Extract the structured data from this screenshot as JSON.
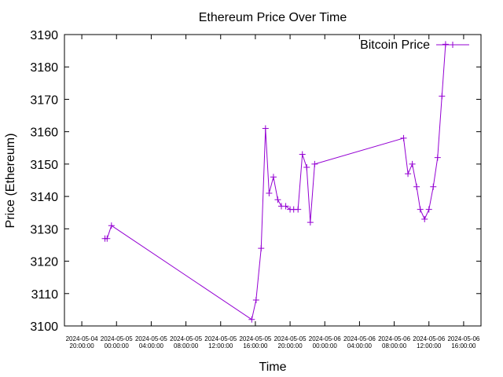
{
  "chart_data": {
    "type": "line",
    "title": "Ethereum Price Over Time",
    "xlabel": "Time",
    "ylabel": "Price (Ethereum)",
    "ylim": [
      3100,
      3190
    ],
    "yticks": [
      3100,
      3110,
      3120,
      3130,
      3140,
      3150,
      3160,
      3170,
      3180,
      3190
    ],
    "xlim": [
      "2024-05-04 18:00",
      "2024-05-06 18:00"
    ],
    "xticks": [
      {
        "value": "2024-05-04 20:00",
        "date": "2024-05-04",
        "time": "20:00:00"
      },
      {
        "value": "2024-05-05 00:00",
        "date": "2024-05-05",
        "time": "00:00:00"
      },
      {
        "value": "2024-05-05 04:00",
        "date": "2024-05-05",
        "time": "04:00:00"
      },
      {
        "value": "2024-05-05 08:00",
        "date": "2024-05-05",
        "time": "08:00:00"
      },
      {
        "value": "2024-05-05 12:00",
        "date": "2024-05-05",
        "time": "12:00:00"
      },
      {
        "value": "2024-05-05 16:00",
        "date": "2024-05-05",
        "time": "16:00:00"
      },
      {
        "value": "2024-05-05 20:00",
        "date": "2024-05-05",
        "time": "20:00:00"
      },
      {
        "value": "2024-05-06 00:00",
        "date": "2024-05-06",
        "time": "00:00:00"
      },
      {
        "value": "2024-05-06 04:00",
        "date": "2024-05-06",
        "time": "04:00:00"
      },
      {
        "value": "2024-05-06 08:00",
        "date": "2024-05-06",
        "time": "08:00:00"
      },
      {
        "value": "2024-05-06 12:00",
        "date": "2024-05-06",
        "time": "12:00:00"
      },
      {
        "value": "2024-05-06 16:00",
        "date": "2024-05-06",
        "time": "16:00:00"
      }
    ],
    "legend_position": "top-right",
    "series": [
      {
        "name": "Bitcoin Price",
        "color": "#9400d3",
        "marker": "plus",
        "points": [
          {
            "x": "2024-05-04 22:40",
            "y": 3127
          },
          {
            "x": "2024-05-04 22:55",
            "y": 3127
          },
          {
            "x": "2024-05-04 23:25",
            "y": 3131
          },
          {
            "x": "2024-05-05 15:35",
            "y": 3102
          },
          {
            "x": "2024-05-05 16:05",
            "y": 3108
          },
          {
            "x": "2024-05-05 16:40",
            "y": 3124
          },
          {
            "x": "2024-05-05 17:10",
            "y": 3161
          },
          {
            "x": "2024-05-05 17:35",
            "y": 3141
          },
          {
            "x": "2024-05-05 18:05",
            "y": 3146
          },
          {
            "x": "2024-05-05 18:35",
            "y": 3139
          },
          {
            "x": "2024-05-05 19:00",
            "y": 3137
          },
          {
            "x": "2024-05-05 19:30",
            "y": 3137
          },
          {
            "x": "2024-05-05 20:00",
            "y": 3136
          },
          {
            "x": "2024-05-05 20:25",
            "y": 3136
          },
          {
            "x": "2024-05-05 20:55",
            "y": 3136
          },
          {
            "x": "2024-05-05 21:25",
            "y": 3153
          },
          {
            "x": "2024-05-05 21:55",
            "y": 3149
          },
          {
            "x": "2024-05-05 22:20",
            "y": 3132
          },
          {
            "x": "2024-05-05 22:50",
            "y": 3150
          },
          {
            "x": "2024-05-06 09:05",
            "y": 3158
          },
          {
            "x": "2024-05-06 09:35",
            "y": 3147
          },
          {
            "x": "2024-05-06 10:05",
            "y": 3150
          },
          {
            "x": "2024-05-06 10:35",
            "y": 3143
          },
          {
            "x": "2024-05-06 11:00",
            "y": 3136
          },
          {
            "x": "2024-05-06 11:30",
            "y": 3133
          },
          {
            "x": "2024-05-06 12:00",
            "y": 3136
          },
          {
            "x": "2024-05-06 12:30",
            "y": 3143
          },
          {
            "x": "2024-05-06 13:00",
            "y": 3152
          },
          {
            "x": "2024-05-06 13:30",
            "y": 3171
          },
          {
            "x": "2024-05-06 13:55",
            "y": 3187
          }
        ]
      }
    ]
  }
}
